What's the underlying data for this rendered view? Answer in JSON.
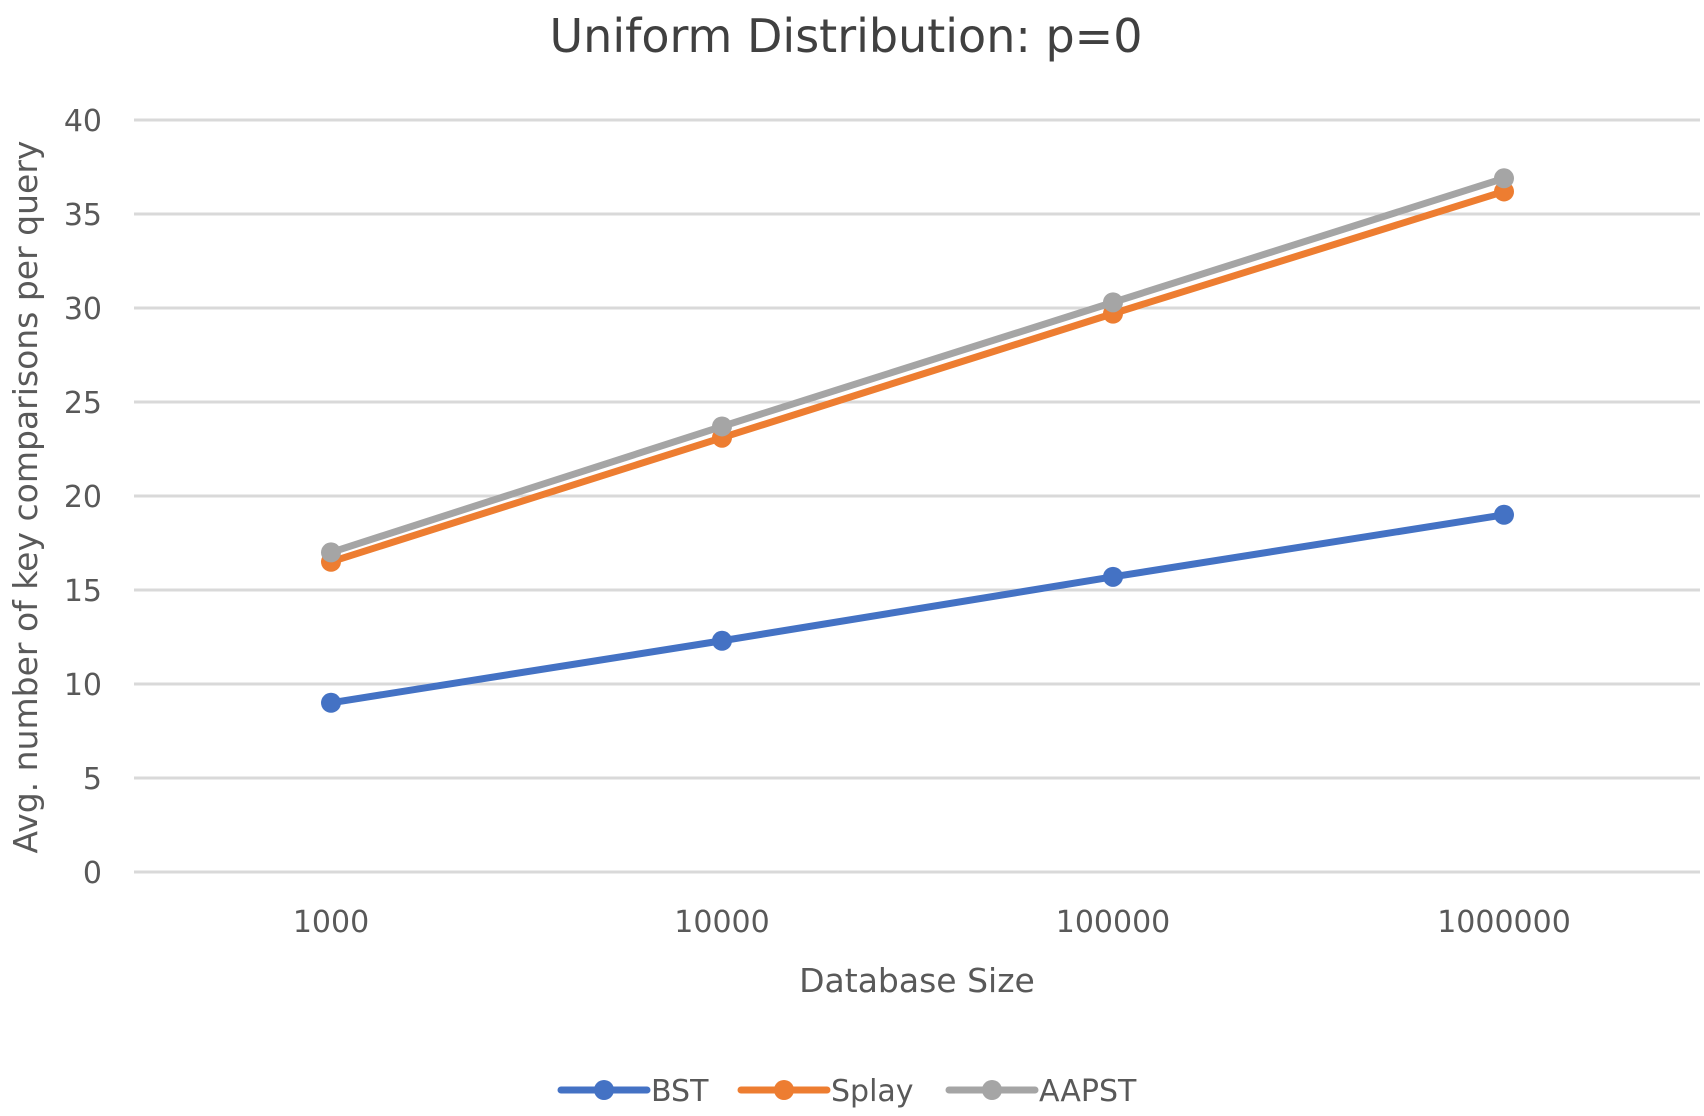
{
  "chart_data": {
    "type": "line",
    "title": "Uniform Distribution: p=0",
    "xlabel": "Database Size",
    "ylabel": "Avg. number of key comparisons per query",
    "categories": [
      "1000",
      "10000",
      "100000",
      "1000000"
    ],
    "ylim": [
      0,
      40
    ],
    "yticks": [
      0,
      5,
      10,
      15,
      20,
      25,
      30,
      35,
      40
    ],
    "grid": true,
    "legend_position": "bottom",
    "series": [
      {
        "name": "BST",
        "color": "#4472C4",
        "values": [
          9.0,
          12.3,
          15.7,
          19.0
        ]
      },
      {
        "name": "Splay",
        "color": "#ED7D31",
        "values": [
          16.5,
          23.1,
          29.7,
          36.2
        ]
      },
      {
        "name": "AAPST",
        "color": "#A5A5A5",
        "values": [
          17.0,
          23.7,
          30.3,
          36.9
        ]
      }
    ]
  }
}
